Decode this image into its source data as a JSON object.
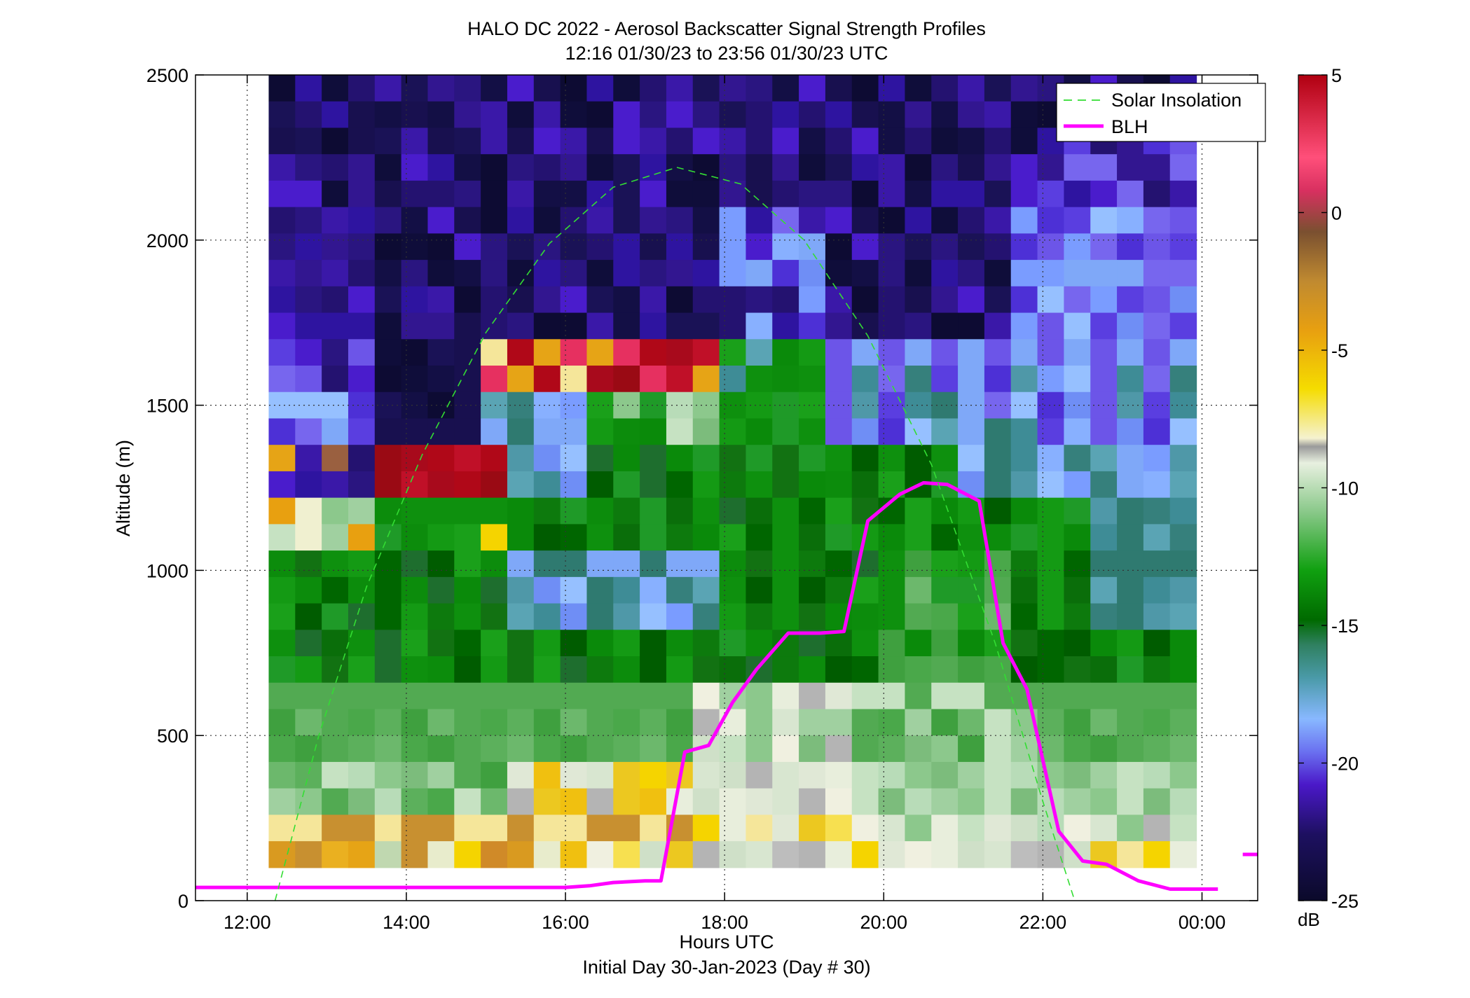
{
  "chart_data": {
    "type": "heatmap",
    "title": "HALO DC 2022 - Aerosol Backscatter Signal Strength Profiles",
    "subtitle": "12:16 01/30/23 to 23:56 01/30/23  UTC",
    "xlabel": "Hours UTC",
    "xlabel2": "Initial Day 30-Jan-2023 (Day # 30)",
    "ylabel": "Altitude (m)",
    "x_ticks": [
      "12:00",
      "14:00",
      "16:00",
      "18:00",
      "20:00",
      "22:00",
      "00:00"
    ],
    "y_ticks": [
      "0",
      "500",
      "1000",
      "1500",
      "2000",
      "2500"
    ],
    "xlim_hours": [
      11.35,
      24.7
    ],
    "ylim": [
      0,
      2500
    ],
    "grid": true,
    "legend": {
      "position": "top-right",
      "entries": [
        "Solar Insolation",
        "BLH"
      ]
    },
    "colorbar": {
      "ticks": [
        "5",
        "0",
        "-5",
        "-10",
        "-15",
        "-20",
        "-25"
      ],
      "unit": "dB",
      "range": [
        -25,
        5
      ]
    },
    "heatmap": {
      "x_start_hour": 12.27,
      "x_end_hour": 23.93,
      "n_cols": 35,
      "y_start": 100,
      "y_end": 2500,
      "n_rows": 30,
      "value_unit": "dB"
    },
    "series": [
      {
        "name": "BLH",
        "color": "#ff00ff",
        "x_hours": [
          11.35,
          16.0,
          16.3,
          16.6,
          17.0,
          17.2,
          17.5,
          17.8,
          18.1,
          18.4,
          18.8,
          19.2,
          19.5,
          19.8,
          20.2,
          20.5,
          20.8,
          21.2,
          21.5,
          21.8,
          22.2,
          22.5,
          22.8,
          23.2,
          23.6,
          24.2
        ],
        "y": [
          40,
          40,
          45,
          55,
          60,
          60,
          450,
          470,
          600,
          700,
          810,
          810,
          815,
          1150,
          1230,
          1265,
          1260,
          1210,
          780,
          640,
          210,
          120,
          110,
          60,
          35,
          35
        ]
      },
      {
        "name": "Solar Insolation",
        "color": "#33dd33",
        "style": "dashed",
        "x_hours": [
          12.35,
          12.9,
          13.5,
          14.2,
          15.0,
          15.8,
          16.6,
          17.4,
          18.2,
          19.0,
          19.8,
          20.6,
          21.4,
          22.0,
          22.4
        ],
        "y": [
          0,
          500,
          950,
          1350,
          1720,
          1990,
          2160,
          2220,
          2170,
          2000,
          1710,
          1320,
          780,
          300,
          0
        ]
      }
    ],
    "extra_marker": {
      "x_hours": 24.6,
      "y": 140,
      "color": "#ff00ff"
    }
  }
}
